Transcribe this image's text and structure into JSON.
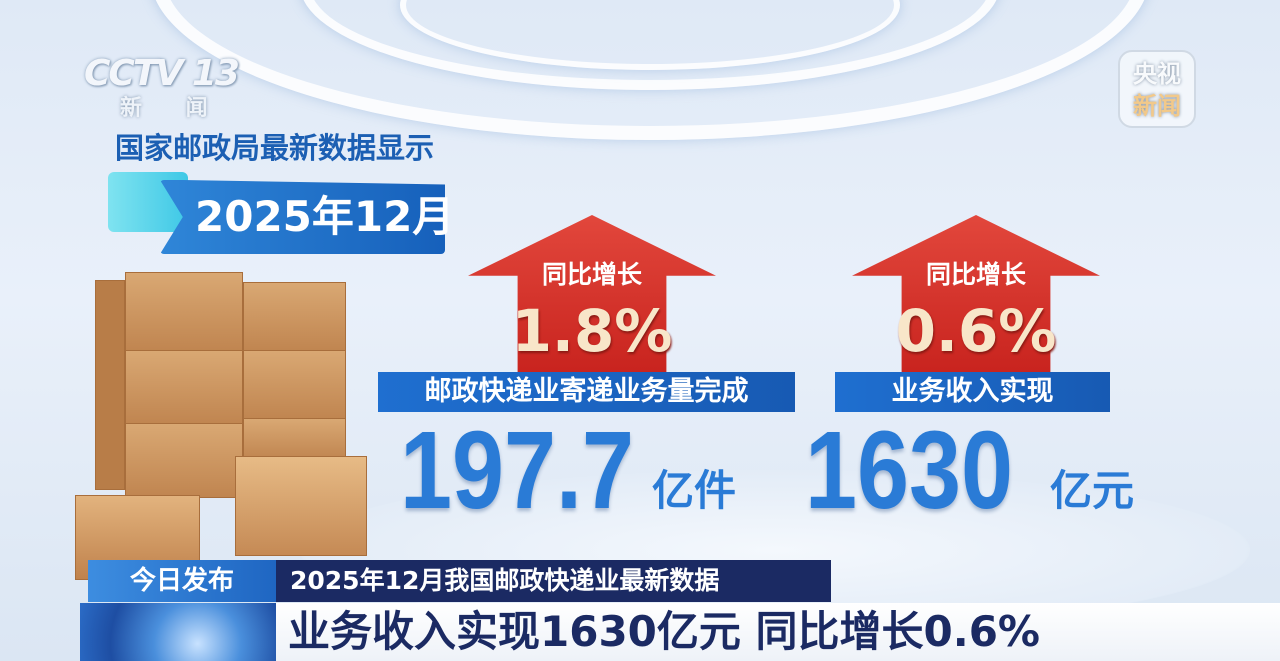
{
  "channel_logo": {
    "main": "CCTV",
    "number": "13",
    "sub": "新 闻"
  },
  "corner_logo": {
    "line1": "央视",
    "line2": "新闻"
  },
  "intro": {
    "title": "国家邮政局最新数据显示",
    "date": "2025年12月"
  },
  "stats": [
    {
      "growth_label": "同比增长",
      "growth_value": "1.8%",
      "label": "邮政快递业寄递业务量完成",
      "value": "197.7",
      "unit": "亿件"
    },
    {
      "growth_label": "同比增长",
      "growth_value": "0.6%",
      "label": "业务收入实现",
      "value": "1630",
      "unit": "亿元"
    }
  ],
  "lower_third": {
    "tag": "今日发布",
    "headline": "2025年12月我国邮政快递业最新数据",
    "caption": "业务收入实现1630亿元 同比增长0.6%"
  },
  "colors": {
    "accent_blue": "#2a7bd6",
    "arrow_red": "#d6322a",
    "navy": "#1b2a63"
  }
}
